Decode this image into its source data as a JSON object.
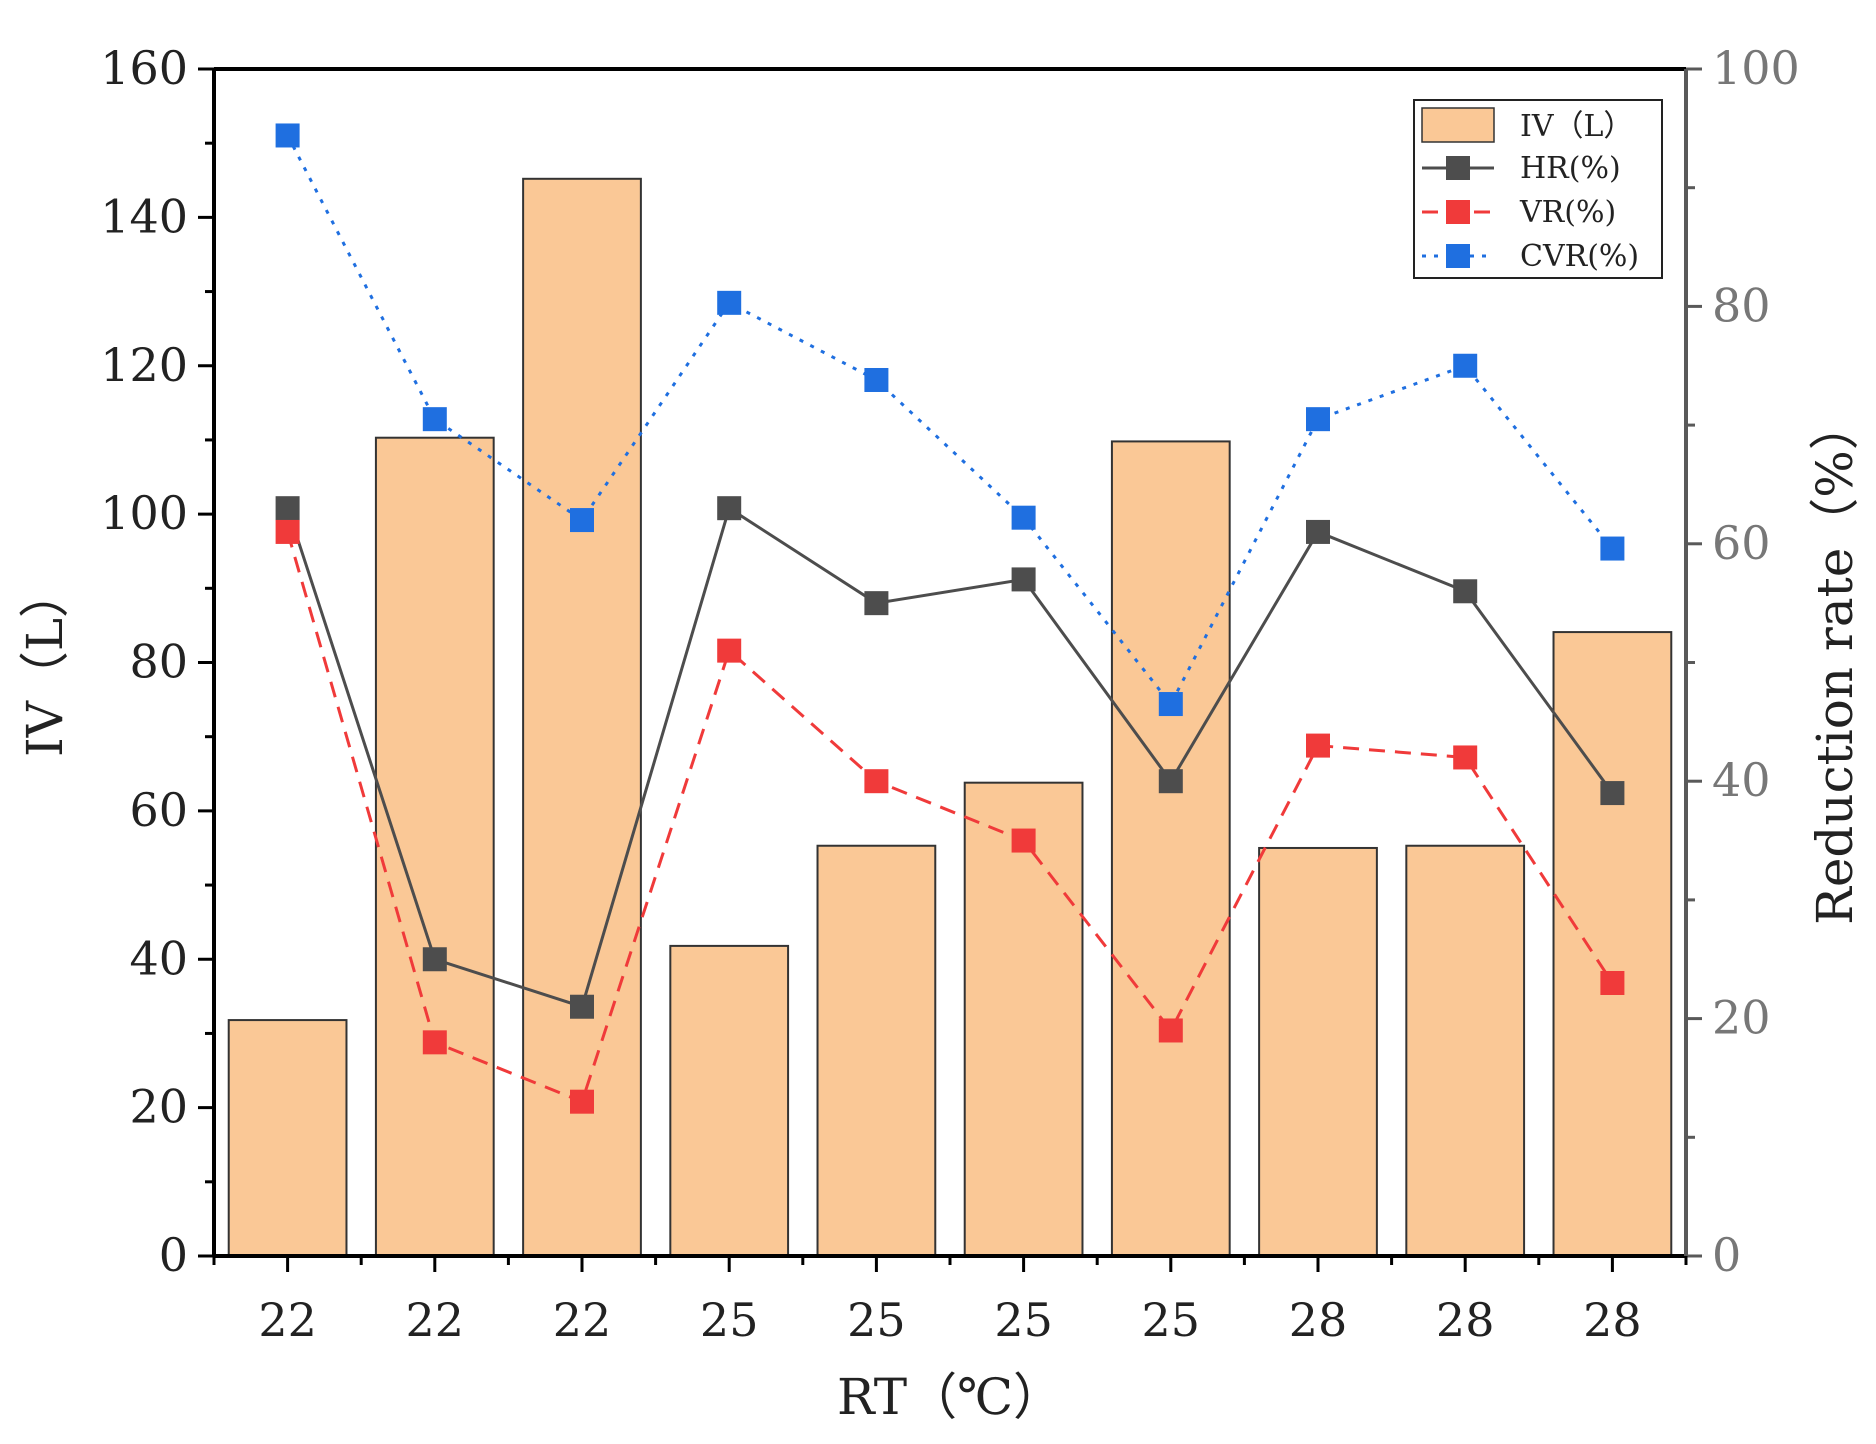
{
  "chart_data": {
    "type": "bar+line",
    "categories": [
      "22",
      "22",
      "22",
      "25",
      "25",
      "25",
      "25",
      "28",
      "28",
      "28"
    ],
    "xlabel": "RT（℃）",
    "ylabel_left": "IV（L）",
    "ylabel_right": "Reduction rate（%）",
    "ylim_left": [
      0,
      160
    ],
    "ylim_right": [
      0,
      100
    ],
    "left_ticks": [
      0,
      20,
      40,
      60,
      80,
      100,
      120,
      140,
      160
    ],
    "right_ticks": [
      0,
      20,
      40,
      60,
      80,
      100
    ],
    "bars": {
      "name": "IV（L）",
      "axis": "left",
      "values": [
        31.8,
        110.3,
        145.2,
        41.8,
        55.3,
        63.8,
        109.8,
        55.0,
        55.3,
        84.1
      ]
    },
    "series": [
      {
        "name": "HR(%)",
        "axis": "right",
        "style": "solid",
        "color": "#4d4d4d",
        "values": [
          63,
          25,
          21,
          63,
          55,
          57,
          40,
          61,
          56,
          39
        ]
      },
      {
        "name": "VR(%)",
        "axis": "right",
        "style": "dashed",
        "color": "#f03a3a",
        "values": [
          61,
          18,
          13,
          51,
          40,
          35,
          19,
          43,
          42,
          23
        ]
      },
      {
        "name": "CVR(%)",
        "axis": "right",
        "style": "dotted",
        "color": "#1f6fe0",
        "values": [
          94.4,
          70.5,
          62,
          80.3,
          73.8,
          62.2,
          46.5,
          70.5,
          75,
          59.6
        ]
      }
    ],
    "legend_position": "top-right",
    "colors": {
      "bar_fill": "#fac896",
      "bar_stroke": "#333333",
      "axis": "#000000",
      "right_axis": "#595959"
    }
  }
}
